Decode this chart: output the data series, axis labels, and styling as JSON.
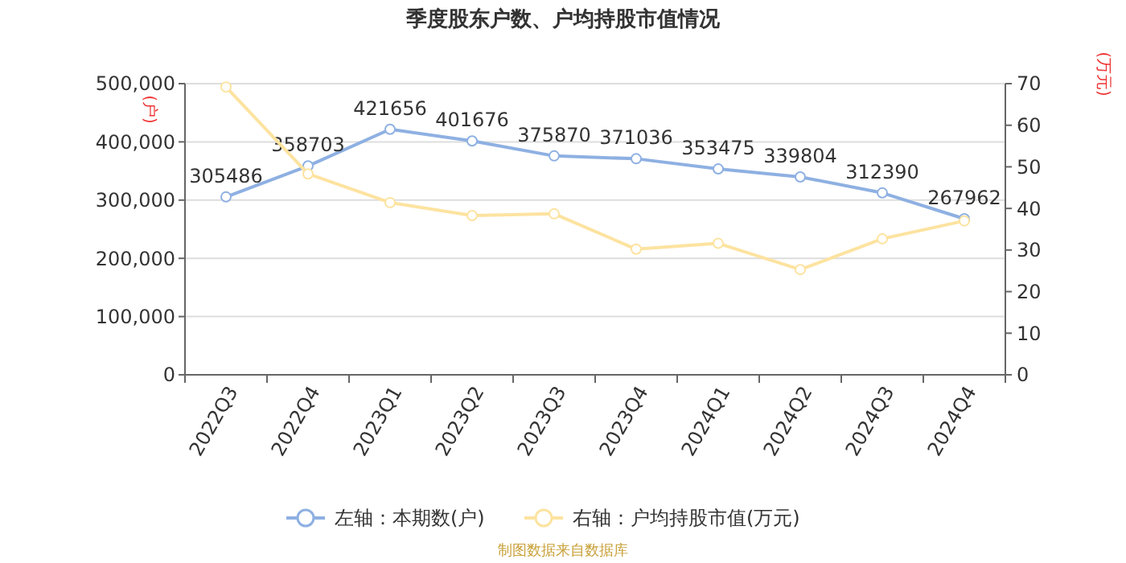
{
  "chart_data": {
    "type": "line",
    "title": "季度股东户数、户均持股市值情况",
    "ylabel": "(户)",
    "y2label": "(万元)",
    "categories": [
      "2022Q3",
      "2022Q4",
      "2023Q1",
      "2023Q2",
      "2023Q3",
      "2023Q4",
      "2024Q1",
      "2024Q2",
      "2024Q3",
      "2024Q4"
    ],
    "series": [
      {
        "name": "左轴：本期数(户)",
        "color": "#8eb0e2",
        "values": [
          305486,
          358703,
          421656,
          401676,
          375870,
          371036,
          353475,
          339804,
          312390,
          267962
        ],
        "value_labels": [
          "305486",
          "358703",
          "421656",
          "401676",
          "375870",
          "371036",
          "353475",
          "339804",
          "312390",
          "267962"
        ]
      },
      {
        "name": "右轴：户均持股市值(万元)",
        "color": "#fde3a0",
        "axis": "y2",
        "values": [
          69.2,
          48.3,
          41.4,
          38.3,
          38.7,
          30.2,
          31.6,
          25.3,
          32.7,
          37.0
        ]
      }
    ],
    "ylim": [
      0,
      500000
    ],
    "yticks": [
      {
        "value": 0,
        "label": "0"
      },
      {
        "value": 100000,
        "label": "100,000"
      },
      {
        "value": 200000,
        "label": "200,000"
      },
      {
        "value": 300000,
        "label": "300,000"
      },
      {
        "value": 400000,
        "label": "400,000"
      },
      {
        "value": 500000,
        "label": "500,000"
      }
    ],
    "y2lim": [
      0,
      70
    ],
    "y2ticks": [
      0,
      10,
      20,
      30,
      40,
      50,
      60,
      70
    ],
    "grid": "y",
    "legend": "bottom",
    "marker": "circle",
    "line_style": "solid",
    "annotations": [
      "制图数据来自数据库"
    ]
  }
}
